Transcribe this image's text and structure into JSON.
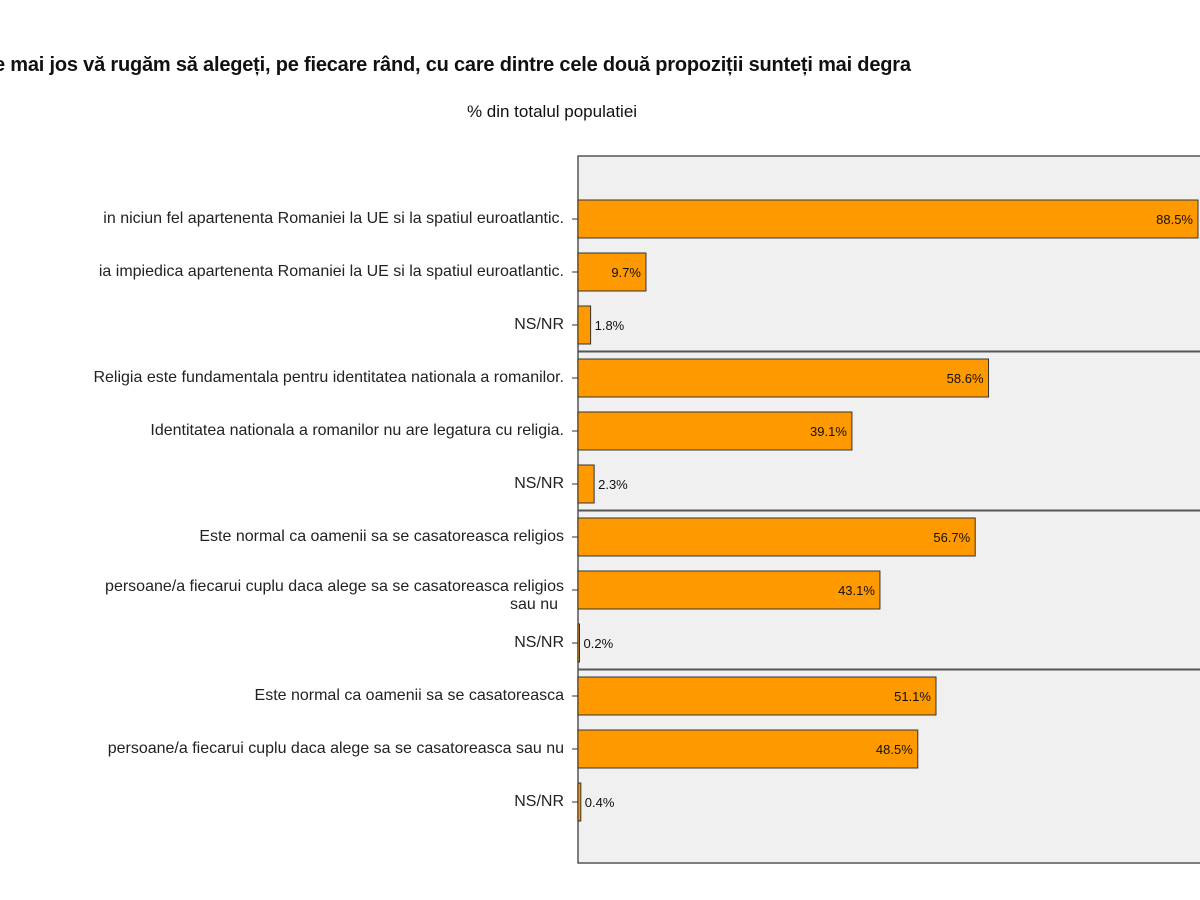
{
  "chart_data": {
    "type": "bar",
    "orientation": "horizontal",
    "title": "e mai jos vă rugăm să alegeți, pe fiecare rând, cu care dintre cele două propoziții sunteți mai degra",
    "subtitle": "% din totalul populatiei",
    "xlabel": "",
    "ylabel": "",
    "xlim": [
      0,
      88.5
    ],
    "grid": false,
    "bar_color": "#FF9900",
    "plot_background": "#F0F0F0",
    "groups": [
      {
        "categories": [
          {
            "label": "in niciun fel apartenenta Romaniei la UE si la spatiul euroatlantic.",
            "value": 88.5,
            "value_label": "88.5%"
          },
          {
            "label": "ia impiedica apartenenta Romaniei la UE si la spatiul euroatlantic.",
            "value": 9.7,
            "value_label": "9.7%"
          },
          {
            "label": "NS/NR",
            "value": 1.8,
            "value_label": "1.8%"
          }
        ]
      },
      {
        "categories": [
          {
            "label": "Religia este fundamentala pentru identitatea nationala a romanilor.",
            "value": 58.6,
            "value_label": "58.6%"
          },
          {
            "label": "Identitatea nationala a romanilor nu are legatura cu religia.",
            "value": 39.1,
            "value_label": "39.1%"
          },
          {
            "label": "NS/NR",
            "value": 2.3,
            "value_label": "2.3%"
          }
        ]
      },
      {
        "categories": [
          {
            "label": "Este normal ca oamenii sa se casatoreasca religios",
            "value": 56.7,
            "value_label": "56.7%"
          },
          {
            "label": "persoane/a fiecarui cuplu daca alege sa se casatoreasca religios",
            "label2": "sau nu",
            "value": 43.1,
            "value_label": "43.1%"
          },
          {
            "label": "NS/NR",
            "value": 0.2,
            "value_label": "0.2%"
          }
        ]
      },
      {
        "categories": [
          {
            "label": "Este normal ca oamenii sa se casatoreasca",
            "value": 51.1,
            "value_label": "51.1%"
          },
          {
            "label": "persoane/a fiecarui cuplu daca alege sa se casatoreasca sau nu",
            "value": 48.5,
            "value_label": "48.5%"
          },
          {
            "label": "NS/NR",
            "value": 0.4,
            "value_label": "0.4%"
          }
        ]
      }
    ]
  }
}
